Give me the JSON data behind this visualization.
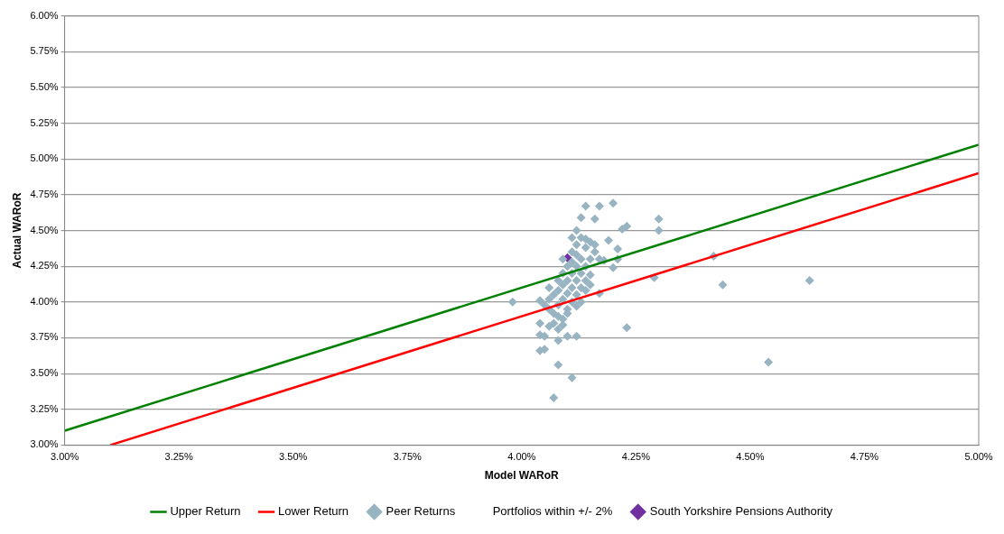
{
  "chart_data": {
    "type": "scatter",
    "xlabel": "Model WARoR",
    "ylabel": "Actual WARoR",
    "xlim": [
      3,
      5
    ],
    "ylim": [
      3,
      6
    ],
    "xticks": [
      {
        "value": 3,
        "label": "3.00%"
      },
      {
        "value": 3.25,
        "label": "3.25%"
      },
      {
        "value": 3.5,
        "label": "3.50%"
      },
      {
        "value": 3.75,
        "label": "3.75%"
      },
      {
        "value": 4,
        "label": "4.00%"
      },
      {
        "value": 4.25,
        "label": "4.25%"
      },
      {
        "value": 4.5,
        "label": "4.50%"
      },
      {
        "value": 4.75,
        "label": "4.75%"
      },
      {
        "value": 5,
        "label": "5.00%"
      }
    ],
    "yticks": [
      {
        "value": 3,
        "label": "3.00%"
      },
      {
        "value": 3.25,
        "label": "3.25%"
      },
      {
        "value": 3.5,
        "label": "3.50%"
      },
      {
        "value": 3.75,
        "label": "3.75%"
      },
      {
        "value": 4,
        "label": "4.00%"
      },
      {
        "value": 4.25,
        "label": "4.25%"
      },
      {
        "value": 4.5,
        "label": "4.50%"
      },
      {
        "value": 4.75,
        "label": "4.75%"
      },
      {
        "value": 5,
        "label": "5.00%"
      },
      {
        "value": 5.25,
        "label": "5.25%"
      },
      {
        "value": 5.5,
        "label": "5.50%"
      },
      {
        "value": 5.75,
        "label": "5.75%"
      },
      {
        "value": 6,
        "label": "6.00%"
      }
    ],
    "grid": "y",
    "legend": "bottom",
    "annotations": [
      "Portfolios within +/- 2%"
    ],
    "series": [
      {
        "name": "Upper Return",
        "type": "line",
        "marker": "none",
        "color": "#008000",
        "x": [
          3,
          5
        ],
        "values": [
          3.1,
          5.1
        ]
      },
      {
        "name": "Lower Return",
        "type": "line",
        "marker": "none",
        "color": "#ff0000",
        "x": [
          3.1,
          5
        ],
        "values": [
          3,
          4.9
        ]
      },
      {
        "name": "Peer Returns",
        "marker": "diamond",
        "color": "#98b4c2",
        "x": [
          3.98,
          4.07,
          4.11,
          4.08,
          4.54,
          4.63,
          4.44,
          4.42,
          4.23,
          4.3,
          4.3,
          4.29,
          4.22,
          4.23,
          4.21,
          4.21,
          4.18,
          4.12,
          4.14,
          4.17,
          4.2,
          4.16,
          4.13,
          4.19,
          4.2,
          4.15,
          4.17,
          4.04,
          4.04,
          4.06,
          4.04,
          4.05,
          4.04,
          4.05,
          4.08,
          4.08,
          4.09,
          4.1,
          4.05,
          4.06,
          4.07,
          4.06,
          4.07,
          4.08,
          4.08,
          4.09,
          4.09,
          4.1,
          4.1,
          4.1,
          4.11,
          4.11,
          4.11,
          4.12,
          4.12,
          4.12,
          4.13,
          4.13,
          4.13,
          4.11,
          4.12,
          4.13,
          4.11,
          4.14,
          4.15,
          4.14,
          4.15,
          4.16,
          4.12,
          4.1,
          4.09,
          4.08,
          4.09,
          4.1,
          4.07,
          4.12,
          4.14,
          4.13,
          4.11,
          4.12,
          4.14,
          4.16,
          4.17,
          4.14,
          4.15,
          4.08,
          4.06,
          4.09
        ],
        "values": [
          4.0,
          3.33,
          3.47,
          3.56,
          3.58,
          4.15,
          4.12,
          4.32,
          3.82,
          4.5,
          4.58,
          4.17,
          4.51,
          4.53,
          4.37,
          4.3,
          4.29,
          3.76,
          4.67,
          4.67,
          4.69,
          4.58,
          4.59,
          4.43,
          4.24,
          4.19,
          4.06,
          4.01,
          3.85,
          3.83,
          3.77,
          3.76,
          3.66,
          3.67,
          3.73,
          3.81,
          3.84,
          3.76,
          3.98,
          4.02,
          4.05,
          3.95,
          3.92,
          3.98,
          4.08,
          4.12,
          4.02,
          4.06,
          4.15,
          3.95,
          4.2,
          4.1,
          4.0,
          4.25,
          4.15,
          4.05,
          4.3,
          4.2,
          4.1,
          4.35,
          4.4,
          4.45,
          4.28,
          4.38,
          4.42,
          4.25,
          4.3,
          4.35,
          4.33,
          4.25,
          4.2,
          3.9,
          3.88,
          3.92,
          3.85,
          3.97,
          4.08,
          4.0,
          4.45,
          4.5,
          4.44,
          4.4,
          4.3,
          4.15,
          4.12,
          4.15,
          4.1,
          4.3
        ]
      },
      {
        "name": "South Yorkshire Pensions Authority",
        "marker": "diamond",
        "color": "#7030a0",
        "x": [
          4.1
        ],
        "values": [
          4.31
        ]
      }
    ]
  }
}
